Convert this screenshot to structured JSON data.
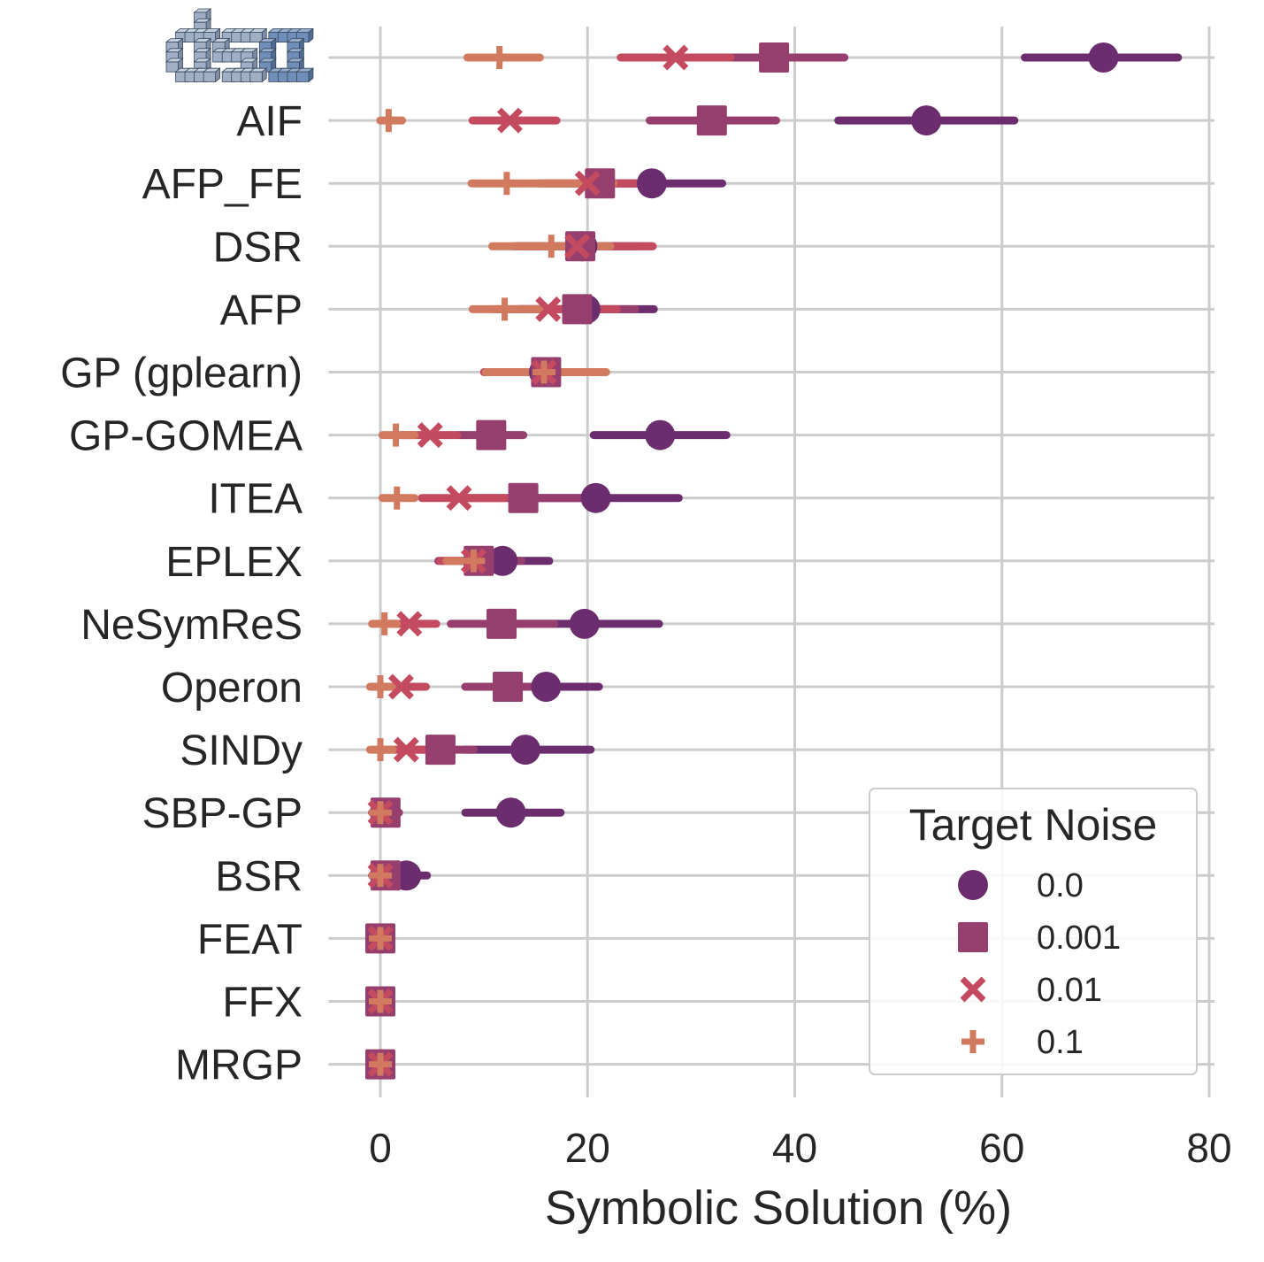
{
  "chart_data": {
    "type": "scatter",
    "xlabel": "Symbolic Solution (%)",
    "ylabel": "",
    "xlim": [
      -5,
      80
    ],
    "xticks": [
      0,
      20,
      40,
      60,
      80
    ],
    "grid": true,
    "legend_position": "bottom-right",
    "legend_title": "Target Noise",
    "categories": [
      "dso",
      "AIF",
      "AFP_FE",
      "DSR",
      "AFP",
      "GP (gplearn)",
      "GP-GOMEA",
      "ITEA",
      "EPLEX",
      "NeSymReS",
      "Operon",
      "SINDy",
      "SBP-GP",
      "BSR",
      "FEAT",
      "FFX",
      "MRGP"
    ],
    "logo_category": "dso",
    "series": [
      {
        "name": "0.0",
        "marker": "circle",
        "color": "#6b2d6e",
        "values": [
          69.8,
          52.7,
          26.2,
          19.5,
          19.8,
          15.8,
          27.0,
          20.8,
          11.8,
          19.7,
          16.0,
          14.0,
          12.6,
          2.5,
          0.0,
          0.0,
          0.0
        ],
        "ci": [
          [
            62.2,
            77.0
          ],
          [
            44.2,
            61.2
          ],
          [
            19.6,
            33.0
          ],
          [
            12.8,
            26.2
          ],
          [
            13.5,
            26.4
          ],
          [
            10.4,
            21.5
          ],
          [
            20.6,
            33.4
          ],
          [
            12.8,
            28.8
          ],
          [
            7.8,
            16.3
          ],
          [
            12.8,
            26.9
          ],
          [
            8.2,
            21.1
          ],
          [
            8.2,
            20.3
          ],
          [
            8.2,
            17.4
          ],
          [
            0.0,
            4.5
          ],
          [
            -0.5,
            1.0
          ],
          [
            -0.5,
            1.0
          ],
          [
            -0.5,
            1.0
          ]
        ]
      },
      {
        "name": "0.001",
        "marker": "square",
        "color": "#963f6e",
        "values": [
          38.0,
          32.0,
          21.2,
          19.3,
          19.0,
          16.0,
          10.7,
          13.8,
          9.5,
          11.7,
          12.3,
          5.8,
          0.5,
          0.5,
          0.0,
          0.0,
          0.0
        ],
        "ci": [
          [
            31.0,
            44.8
          ],
          [
            26.0,
            38.2
          ],
          [
            15.2,
            27.2
          ],
          [
            13.5,
            25.0
          ],
          [
            13.2,
            24.6
          ],
          [
            10.6,
            21.3
          ],
          [
            7.5,
            13.8
          ],
          [
            8.2,
            19.8
          ],
          [
            5.6,
            13.6
          ],
          [
            6.8,
            16.8
          ],
          [
            8.2,
            17.0
          ],
          [
            3.0,
            9.0
          ],
          [
            -0.8,
            1.8
          ],
          [
            -0.8,
            2.2
          ],
          [
            -0.5,
            1.0
          ],
          [
            -0.5,
            1.0
          ],
          [
            -0.5,
            1.0
          ]
        ]
      },
      {
        "name": "0.01",
        "marker": "x",
        "color": "#c44b5f",
        "values": [
          28.5,
          12.5,
          20.0,
          19.0,
          16.2,
          15.8,
          4.8,
          7.6,
          9.0,
          2.8,
          2.0,
          2.5,
          0.0,
          0.0,
          0.0,
          0.0,
          0.0
        ],
        "ci": [
          [
            23.2,
            33.8
          ],
          [
            8.9,
            17.0
          ],
          [
            15.8,
            26.2
          ],
          [
            13.2,
            26.3
          ],
          [
            11.0,
            22.8
          ],
          [
            10.0,
            21.5
          ],
          [
            2.0,
            7.4
          ],
          [
            4.0,
            12.0
          ],
          [
            5.8,
            12.4
          ],
          [
            0.6,
            5.4
          ],
          [
            0.0,
            4.4
          ],
          [
            0.2,
            5.0
          ],
          [
            -0.5,
            1.0
          ],
          [
            -0.5,
            1.0
          ],
          [
            -0.5,
            1.0
          ],
          [
            -0.5,
            1.0
          ],
          [
            -0.5,
            1.0
          ]
        ]
      },
      {
        "name": "0.1",
        "marker": "plus",
        "color": "#d27a5f",
        "values": [
          11.5,
          0.8,
          12.2,
          16.5,
          12.0,
          15.8,
          1.5,
          1.6,
          9.0,
          0.4,
          0.0,
          0.0,
          0.0,
          0.0,
          0.0,
          0.0,
          0.0
        ],
        "ci": [
          [
            8.4,
            15.4
          ],
          [
            0.0,
            2.1
          ],
          [
            8.8,
            22.5
          ],
          [
            10.8,
            22.2
          ],
          [
            8.9,
            16.0
          ],
          [
            10.2,
            21.8
          ],
          [
            0.2,
            3.3
          ],
          [
            0.2,
            3.3
          ],
          [
            6.4,
            12.4
          ],
          [
            -0.8,
            1.6
          ],
          [
            -1.0,
            1.2
          ],
          [
            -1.0,
            1.2
          ],
          [
            -0.5,
            1.0
          ],
          [
            -0.5,
            1.0
          ],
          [
            -0.5,
            1.0
          ],
          [
            -0.5,
            1.0
          ],
          [
            -0.5,
            1.0
          ]
        ]
      }
    ]
  }
}
